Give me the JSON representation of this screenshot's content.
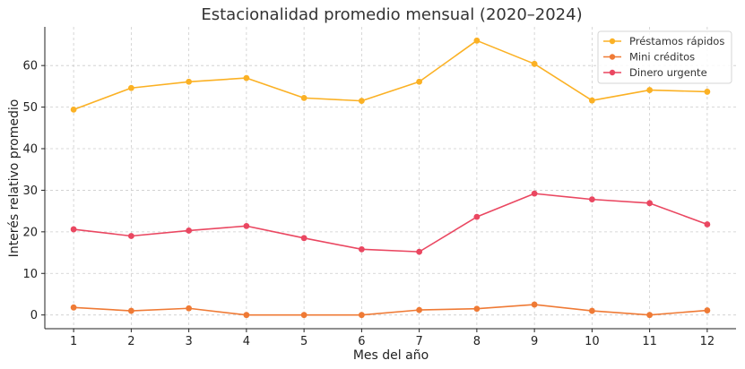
{
  "chart_data": {
    "type": "line",
    "title": "Estacionalidad promedio mensual (2020–2024)",
    "xlabel": "Mes del año",
    "ylabel": "Interés relativo promedio",
    "x": [
      1,
      2,
      3,
      4,
      5,
      6,
      7,
      8,
      9,
      10,
      11,
      12
    ],
    "xlim": [
      0.5,
      12.5
    ],
    "ylim": [
      -3.3,
      69.3
    ],
    "yticks": [
      0,
      10,
      20,
      30,
      40,
      50,
      60
    ],
    "grid": true,
    "legend_position": "top-right",
    "series": [
      {
        "name": "Préstamos rápidos",
        "color": "#fbb124",
        "values": [
          49.4,
          54.6,
          56.1,
          57.0,
          52.2,
          51.5,
          56.1,
          66.0,
          60.4,
          51.6,
          54.1,
          53.7
        ]
      },
      {
        "name": "Mini créditos",
        "color": "#ef7a35",
        "values": [
          1.8,
          1.0,
          1.6,
          0.0,
          0.0,
          0.0,
          1.2,
          1.5,
          2.5,
          1.0,
          0.0,
          1.1
        ]
      },
      {
        "name": "Dinero urgente",
        "color": "#ea4761",
        "values": [
          20.6,
          19.0,
          20.3,
          21.4,
          18.5,
          15.8,
          15.2,
          23.6,
          29.2,
          27.8,
          26.9,
          21.8
        ]
      }
    ]
  }
}
